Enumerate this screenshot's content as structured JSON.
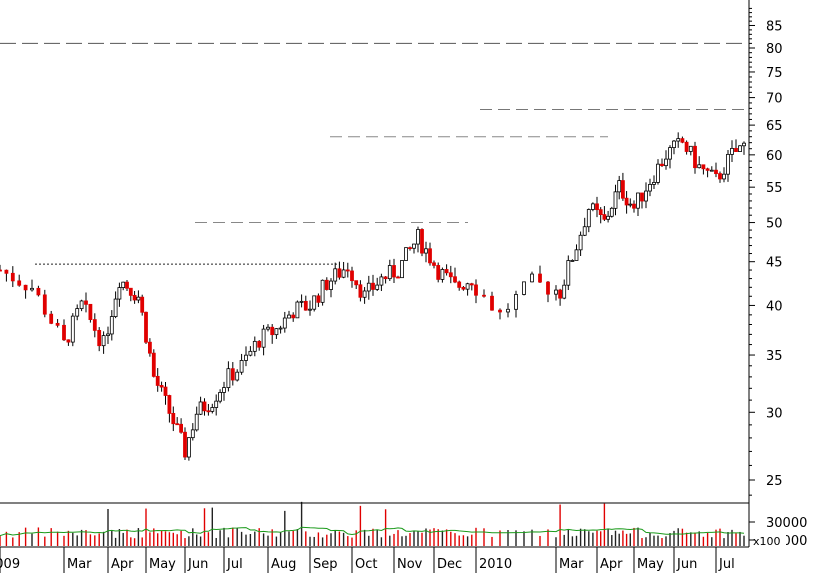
{
  "chart_data": {
    "type": "candlestick",
    "y_scale": "log",
    "ylim": [
      23,
      95
    ],
    "y_ticks": [
      25,
      30,
      35,
      40,
      45,
      50,
      55,
      60,
      65,
      70,
      75,
      80,
      85
    ],
    "volume_tick_labels": [
      "30000",
      "10000"
    ],
    "volume_multiplier_label": "x100",
    "x_tick_labels": [
      "2009",
      "Mar",
      "Apr",
      "May",
      "Jun",
      "Jul",
      "Aug",
      "Sep",
      "Oct",
      "Nov",
      "Dec",
      "2010",
      "Mar",
      "Apr",
      "May",
      "Jun",
      "Jul"
    ],
    "reference_lines": [
      {
        "value": 81,
        "style": "long-dash"
      },
      {
        "value": 67.8,
        "style": "dash"
      },
      {
        "value": 63,
        "style": "dash"
      },
      {
        "value": 50,
        "style": "dash"
      },
      {
        "value": 44.7,
        "style": "dotted"
      }
    ],
    "price_path": [
      [
        0,
        44
      ],
      [
        0.5,
        42
      ],
      [
        1.0,
        36
      ],
      [
        1.4,
        40
      ],
      [
        1.9,
        36
      ],
      [
        2.3,
        43
      ],
      [
        2.8,
        41
      ],
      [
        3.2,
        33
      ],
      [
        3.6,
        30
      ],
      [
        4.0,
        27
      ],
      [
        4.3,
        30
      ],
      [
        4.7,
        31
      ],
      [
        5.1,
        33
      ],
      [
        5.4,
        34
      ],
      [
        5.8,
        36.5
      ],
      [
        6.2,
        37.5
      ],
      [
        6.6,
        39.5
      ],
      [
        7.0,
        40
      ],
      [
        7.4,
        42.5
      ],
      [
        7.9,
        44.5
      ],
      [
        8.3,
        41
      ],
      [
        8.7,
        43
      ],
      [
        9.1,
        44
      ],
      [
        9.6,
        48
      ],
      [
        10.1,
        44
      ],
      [
        10.5,
        42
      ],
      [
        10.9,
        43
      ],
      [
        11.3,
        39
      ],
      [
        11.7,
        42.5
      ],
      [
        12.1,
        41.5
      ],
      [
        12.5,
        47
      ],
      [
        12.8,
        52
      ],
      [
        13.2,
        50
      ],
      [
        13.6,
        55
      ],
      [
        14.0,
        52
      ],
      [
        14.4,
        56
      ],
      [
        14.8,
        60
      ],
      [
        15.2,
        62
      ],
      [
        15.6,
        58
      ],
      [
        16.0,
        56
      ],
      [
        16.4,
        60
      ],
      [
        16.8,
        62
      ],
      [
        17.2,
        58
      ],
      [
        17.6,
        56
      ],
      [
        18.0,
        54
      ],
      [
        18.4,
        58
      ],
      [
        18.8,
        60
      ],
      [
        19.2,
        58
      ],
      [
        19.6,
        57
      ],
      [
        20.0,
        55
      ],
      [
        20.4,
        56
      ],
      [
        20.8,
        57
      ],
      [
        21.2,
        62
      ],
      [
        21.6,
        64
      ],
      [
        22.0,
        66
      ],
      [
        22.4,
        67
      ],
      [
        22.8,
        65
      ],
      [
        23.2,
        63
      ],
      [
        23.6,
        61
      ],
      [
        24.0,
        62
      ],
      [
        24.4,
        65
      ],
      [
        24.8,
        68
      ],
      [
        25.2,
        69
      ],
      [
        25.6,
        71
      ],
      [
        26.0,
        72
      ],
      [
        26.4,
        73
      ],
      [
        26.8,
        76
      ],
      [
        27.2,
        78
      ],
      [
        27.6,
        80
      ],
      [
        28.0,
        77
      ],
      [
        28.4,
        76
      ],
      [
        28.8,
        74
      ],
      [
        29.2,
        73
      ],
      [
        29.6,
        75
      ],
      [
        30.0,
        79
      ],
      [
        30.4,
        80
      ],
      [
        30.8,
        76
      ],
      [
        31.2,
        72
      ],
      [
        31.6,
        76
      ],
      [
        32.0,
        70
      ],
      [
        32.4,
        73
      ],
      [
        32.8,
        77
      ],
      [
        33.2,
        74
      ],
      [
        33.6,
        71
      ],
      [
        34.0,
        76
      ],
      [
        34.4,
        79
      ],
      [
        34.8,
        76
      ],
      [
        35.2,
        80
      ]
    ],
    "month_index": [
      0,
      1,
      2,
      3,
      4,
      5,
      6,
      7,
      8,
      9,
      10,
      11,
      12,
      13,
      14,
      15,
      16
    ]
  }
}
